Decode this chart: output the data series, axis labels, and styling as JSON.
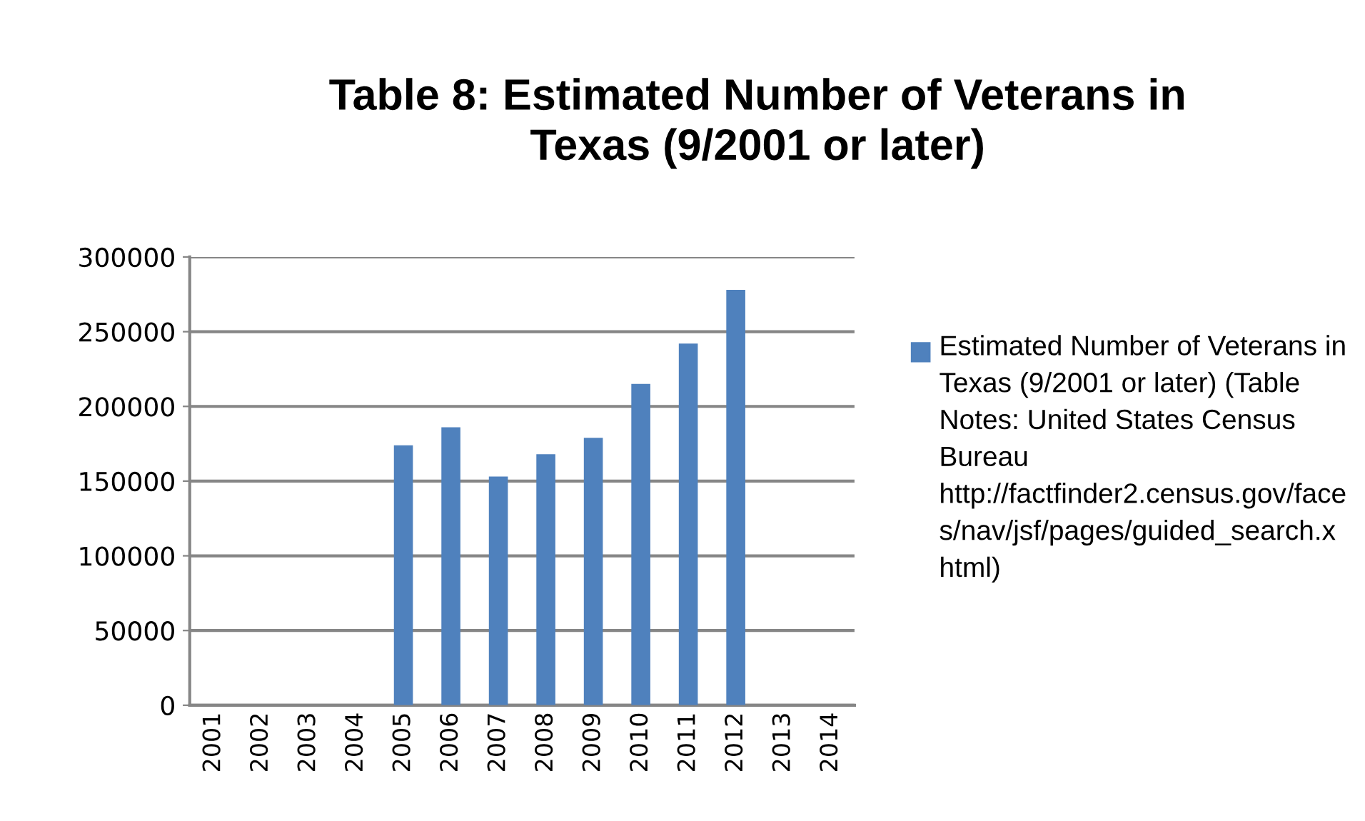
{
  "chart_data": {
    "type": "bar",
    "title": "Table 8: Estimated Number of Veterans in Texas (9/2001 or later)",
    "categories": [
      "2001",
      "2002",
      "2003",
      "2004",
      "2005",
      "2006",
      "2007",
      "2008",
      "2009",
      "2010",
      "2011",
      "2012",
      "2013",
      "2014"
    ],
    "series": [
      {
        "name": "Estimated Number of Veterans in Texas (9/2001 or later) (Table Notes: United States Census Bureau http://factfinder2.census.gov/faces/nav/jsf/pages/guided_search.xhtml)",
        "color": "#4f81bd",
        "values": [
          null,
          null,
          null,
          null,
          174000,
          186000,
          153000,
          168000,
          179000,
          215000,
          242000,
          278000,
          null,
          null
        ]
      }
    ],
    "ylim": [
      0,
      300000
    ],
    "yticks": [
      0,
      50000,
      100000,
      150000,
      200000,
      250000,
      300000
    ],
    "grid": "y",
    "legend": "right"
  }
}
